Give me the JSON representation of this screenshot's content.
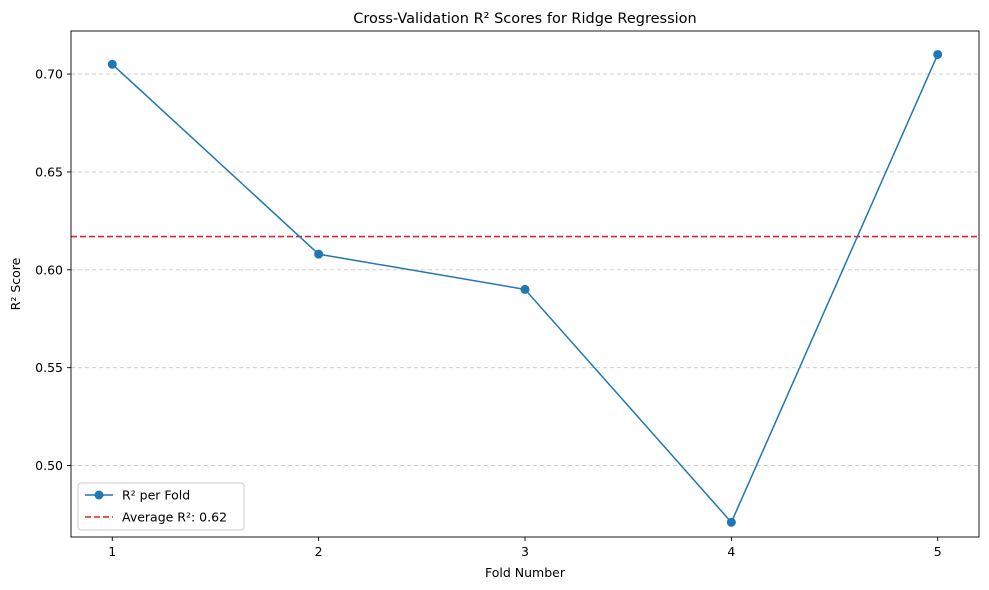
{
  "chart_data": {
    "type": "line",
    "title": "Cross-Validation R² Scores for Ridge Regression",
    "xlabel": "Fold Number",
    "ylabel": "R² Score",
    "x": [
      1,
      2,
      3,
      4,
      5
    ],
    "x_tick_labels": [
      "1",
      "2",
      "3",
      "4",
      "5"
    ],
    "xlim": [
      0.8,
      5.2
    ],
    "ylim": [
      0.4635,
      0.722
    ],
    "y_ticks": [
      0.5,
      0.55,
      0.6,
      0.65,
      0.7
    ],
    "y_tick_labels": [
      "0.50",
      "0.55",
      "0.60",
      "0.65",
      "0.70"
    ],
    "grid": "y-axis, dashed",
    "legend_position": "lower-left",
    "series": [
      {
        "name": "R² per Fold",
        "values": [
          0.705,
          0.608,
          0.59,
          0.471,
          0.71
        ],
        "color": "#1f77b4",
        "marker": "circle",
        "style": "solid"
      }
    ],
    "reference_lines": [
      {
        "name": "Average R²: 0.62",
        "y": 0.617,
        "color": "#d62728",
        "style": "dashed"
      }
    ]
  }
}
